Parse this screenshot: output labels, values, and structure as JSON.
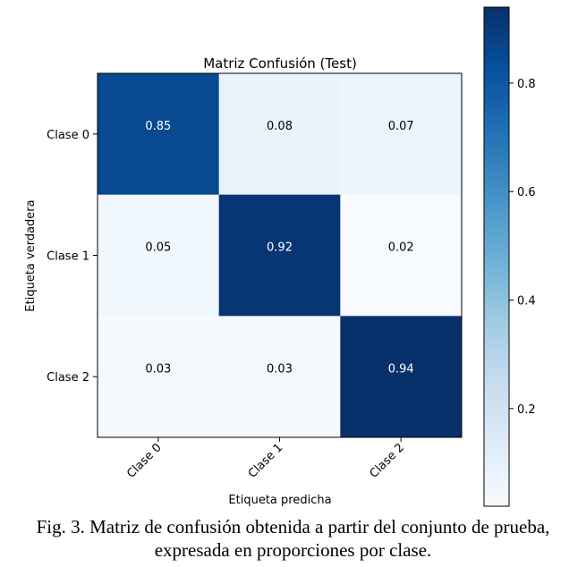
{
  "chart_data": {
    "type": "heatmap",
    "title": "Matriz Confusión (Test)",
    "xlabel": "Etiqueta predicha",
    "ylabel": "Etiqueta verdadera",
    "x_categories": [
      "Clase 0",
      "Clase 1",
      "Clase 2"
    ],
    "y_categories": [
      "Clase 0",
      "Clase 1",
      "Clase 2"
    ],
    "values": [
      [
        0.85,
        0.08,
        0.07
      ],
      [
        0.05,
        0.92,
        0.02
      ],
      [
        0.03,
        0.03,
        0.94
      ]
    ],
    "colormap": "Blues",
    "color_range": [
      0.02,
      0.94
    ],
    "colorbar_ticks": [
      "0.2",
      "0.4",
      "0.6",
      "0.8"
    ],
    "colorbar_tick_values": [
      0.2,
      0.4,
      0.6,
      0.8
    ]
  },
  "caption": {
    "line1": "Fig. 3. Matriz de confusión obtenida a partir del conjunto de prueba,",
    "line2": "expresada en proporciones por clase."
  }
}
